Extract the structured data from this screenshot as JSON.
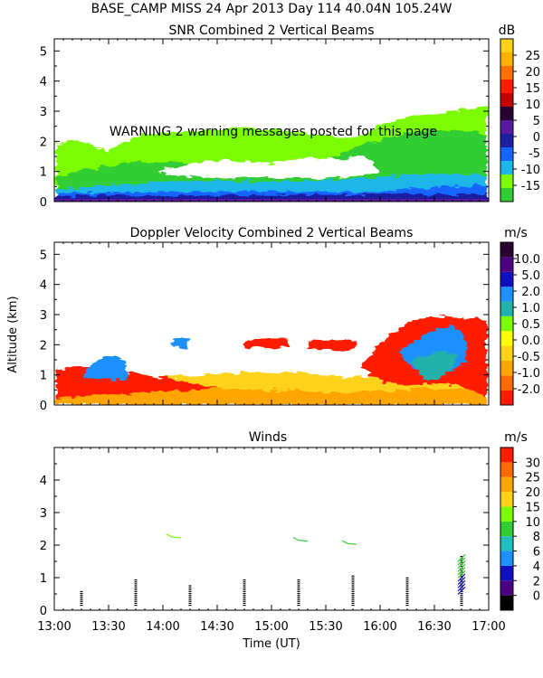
{
  "header": {
    "line1": "BASE_CAMP MISS  24 Apr 2013 Day 114 40.04N 105.24W"
  },
  "warning": "WARNING  2 warning messages posted for this page",
  "y_axis_label": "Altitude (km)",
  "x_axis_label": "Time (UT)",
  "time_ticks": [
    "13:00",
    "13:30",
    "14:00",
    "14:30",
    "15:00",
    "15:30",
    "16:00",
    "16:30",
    "17:00"
  ],
  "colors": {
    "snr": [
      "#32cd32",
      "#7cfc00",
      "#1fb7e8",
      "#1565ff",
      "#1e1ea0",
      "#5a1aa0",
      "#2a0033",
      "#c40000",
      "#ff1a00",
      "#ff7000",
      "#ffb000",
      "#ffd21a"
    ],
    "vel": [
      "#ff1a00",
      "#ff6a00",
      "#ffa500",
      "#ffd21a",
      "#ffff00",
      "#7cfc00",
      "#20b2aa",
      "#1e90ff",
      "#1010c0",
      "#4b0082",
      "#2a0033"
    ],
    "wind": [
      "#000000",
      "#4b0082",
      "#1010c0",
      "#1e90ff",
      "#20c0c0",
      "#32cd32",
      "#7cfc00",
      "#ffd21a",
      "#ffa500",
      "#ff6a00",
      "#ff1a00"
    ]
  },
  "chart_data": [
    {
      "type": "heatmap",
      "title": "SNR Combined 2 Vertical Beams",
      "colorbar_unit": "dB",
      "colorbar_ticks": [
        "25",
        "20",
        "15",
        "10",
        "5",
        "0",
        "-5",
        "-10",
        "-15"
      ],
      "y_ticks": [
        "0",
        "1",
        "2",
        "3",
        "4",
        "5"
      ],
      "ylim": [
        0,
        5.4
      ],
      "xlim": [
        "13:00",
        "17:00"
      ],
      "xlabel": "",
      "ylabel": ""
    },
    {
      "type": "heatmap",
      "title": "Doppler Velocity Combined 2 Vertical Beams",
      "colorbar_unit": "m/s",
      "colorbar_ticks": [
        "10.0",
        "5.0",
        "2.0",
        "1.0",
        "0.5",
        "0.0",
        "-0.5",
        "-1.0",
        "-2.0"
      ],
      "y_ticks": [
        "0",
        "1",
        "2",
        "3",
        "4",
        "5"
      ],
      "ylim": [
        0,
        5.4
      ],
      "xlim": [
        "13:00",
        "17:00"
      ],
      "xlabel": "",
      "ylabel": "Altitude (km)"
    },
    {
      "type": "scatter",
      "title": "Winds",
      "colorbar_unit": "m/s",
      "colorbar_ticks": [
        "30",
        "25",
        "20",
        "15",
        "10",
        "8",
        "6",
        "4",
        "2",
        "0"
      ],
      "y_ticks": [
        "0",
        "1",
        "2",
        "3",
        "4"
      ],
      "ylim": [
        0,
        5.0
      ],
      "xlim": [
        "13:00",
        "17:00"
      ],
      "xlabel": "Time (UT)",
      "ylabel": "",
      "profile_times": [
        "13:15",
        "13:45",
        "14:15",
        "14:45",
        "15:15",
        "15:45",
        "16:15",
        "16:45"
      ],
      "profile_top_km": [
        0.6,
        0.95,
        0.8,
        0.95,
        0.95,
        1.1,
        1.0,
        1.7
      ],
      "high_level_winds": [
        {
          "time": "14:05",
          "alt_km": 2.25,
          "color": "lime"
        },
        {
          "time": "15:15",
          "alt_km": 2.15,
          "color": "green"
        },
        {
          "time": "15:42",
          "alt_km": 2.05,
          "color": "green"
        }
      ]
    }
  ]
}
